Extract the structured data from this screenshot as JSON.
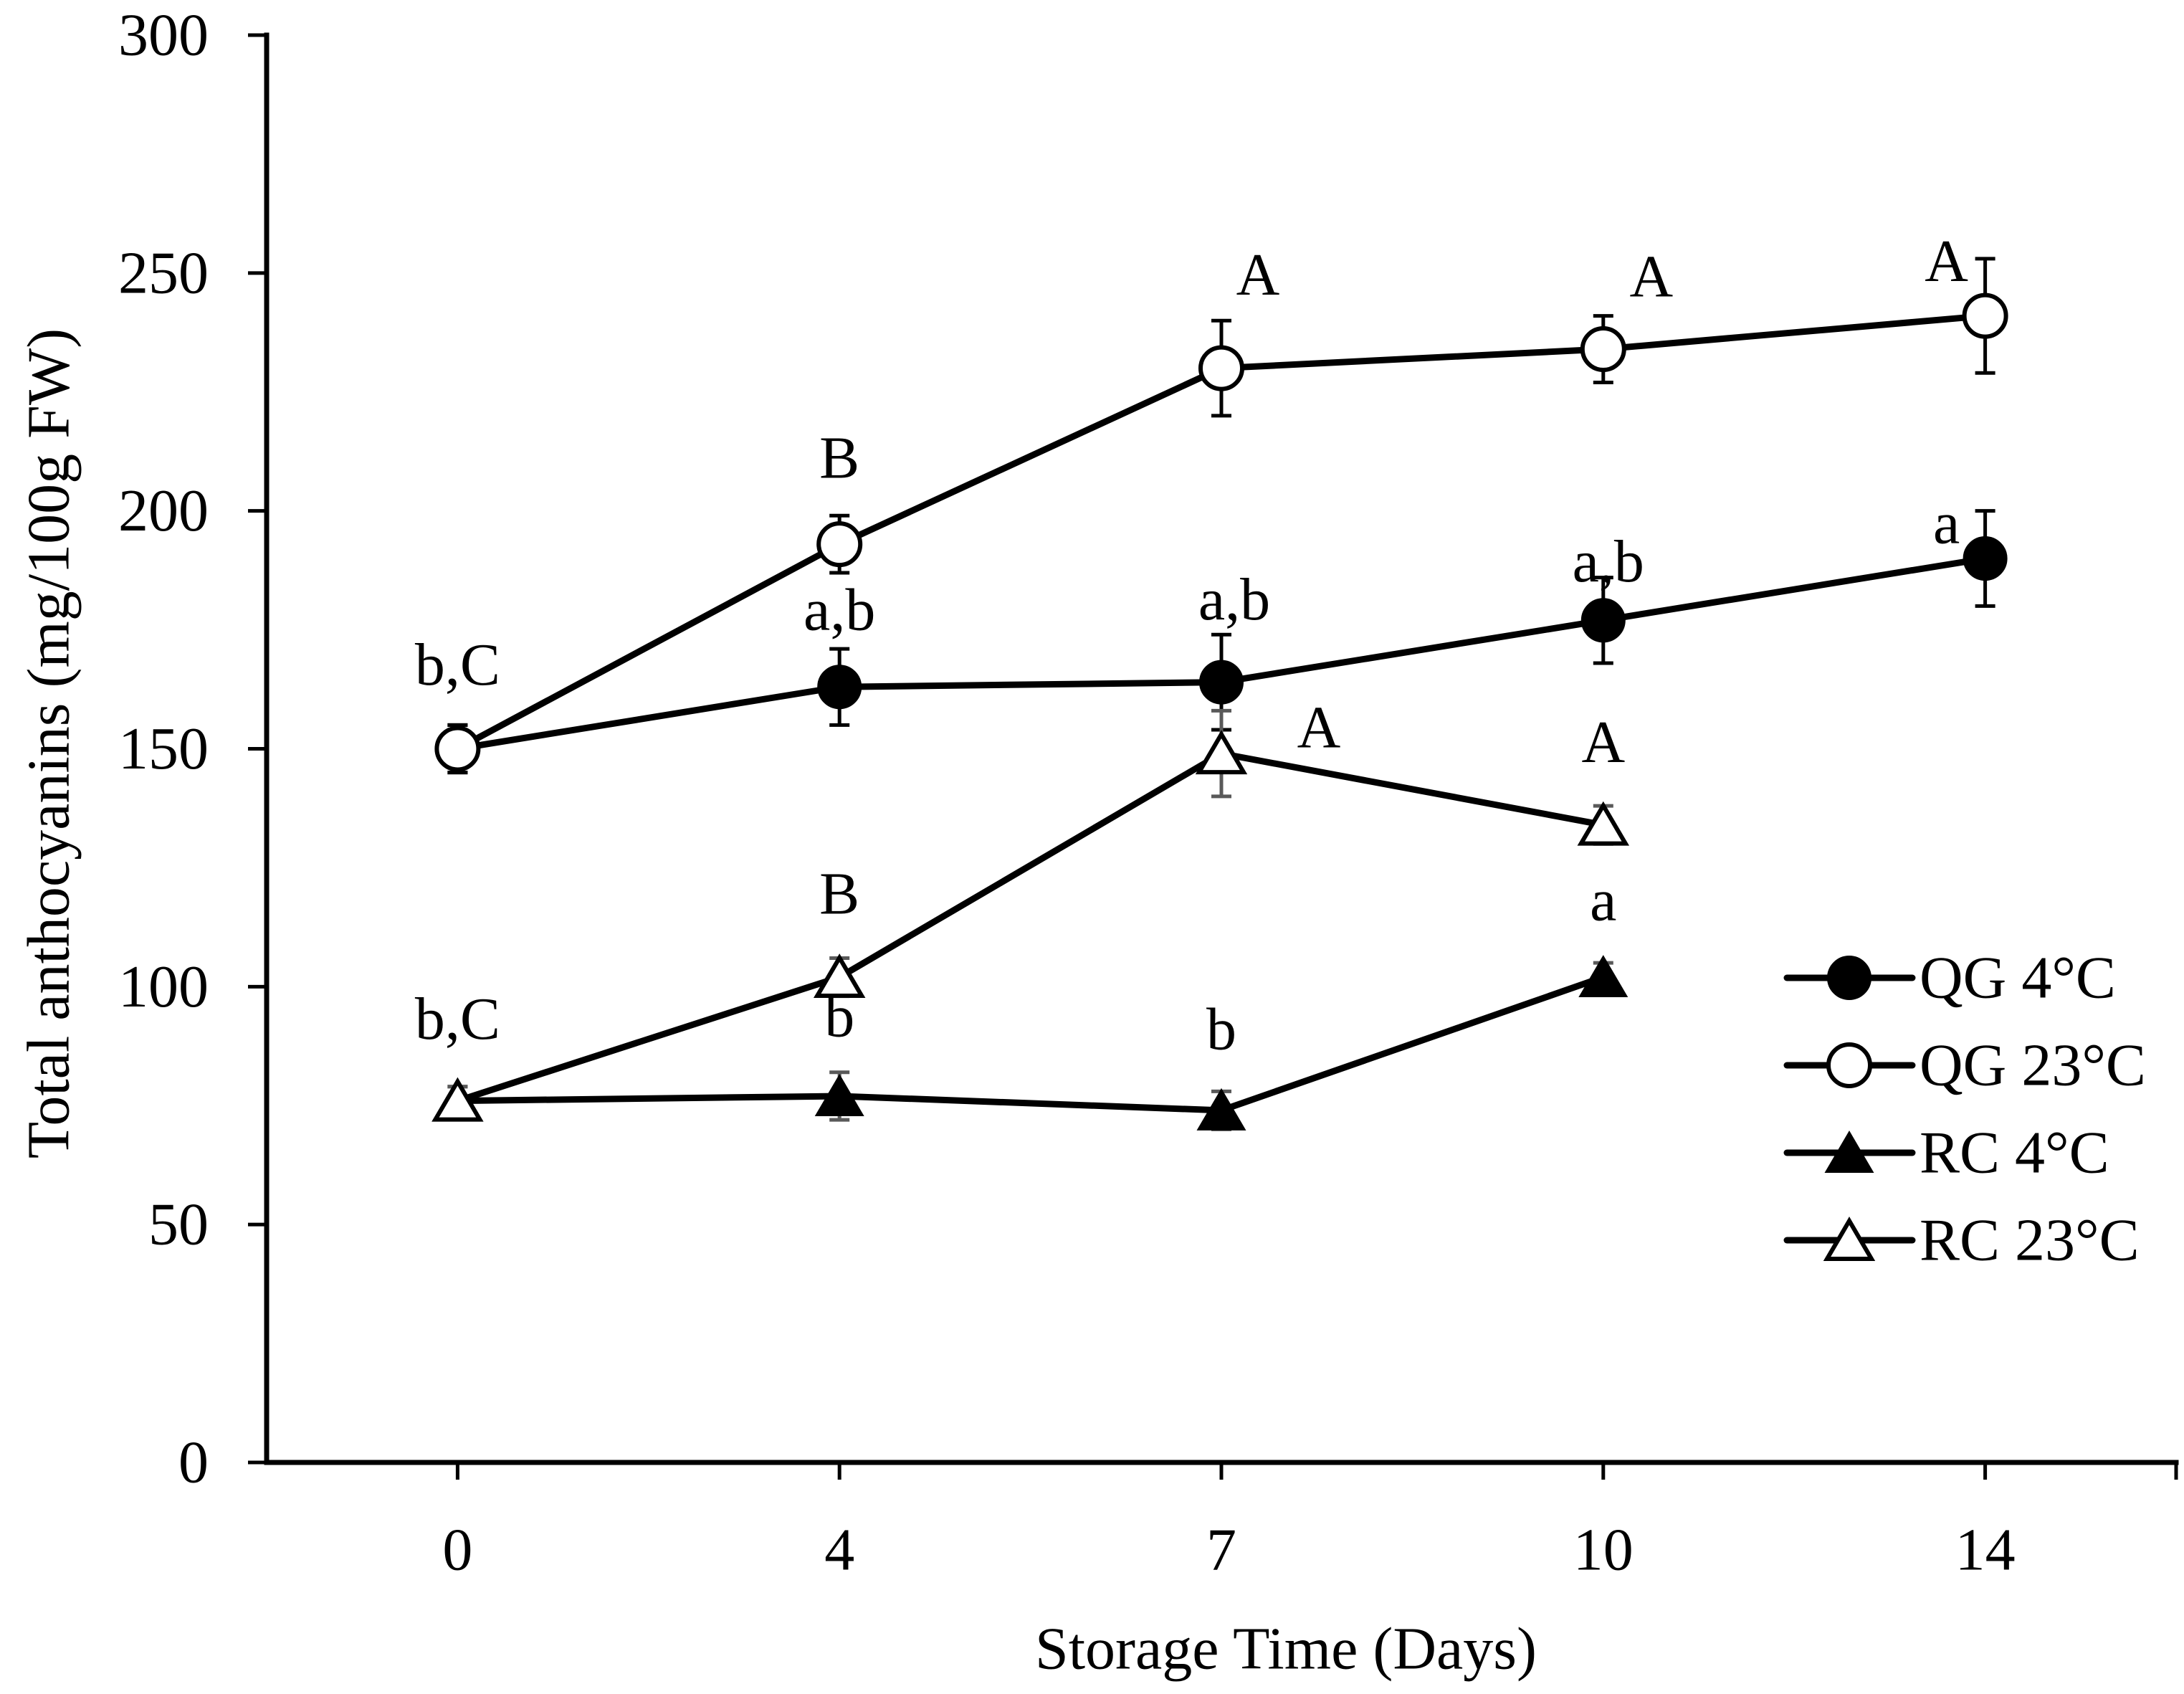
{
  "chart_data": {
    "type": "line",
    "xlabel": "Storage Time (Days)",
    "ylabel": "Total anthocyanins (mg/100g FW)",
    "categories": [
      "0",
      "4",
      "7",
      "10",
      "14"
    ],
    "ylim": [
      0,
      300
    ],
    "yticks": [
      0,
      50,
      100,
      150,
      200,
      250,
      300
    ],
    "grid": false,
    "series": [
      {
        "name": "QG 4°C",
        "marker": "filled-circle",
        "color": "#000000",
        "error_color": "#000000",
        "values": [
          150,
          163,
          164,
          177,
          190
        ],
        "errors": [
          5,
          8,
          10,
          9,
          10
        ],
        "labels": [
          null,
          "a,b",
          "a,b",
          "a,b",
          "a"
        ]
      },
      {
        "name": "QG 23°C",
        "marker": "open-circle",
        "color": "#000000",
        "error_color": "#000000",
        "values": [
          150,
          193,
          230,
          234,
          241
        ],
        "errors": [
          5,
          6,
          10,
          7,
          12
        ],
        "labels": [
          "b,C",
          "B",
          "A",
          "A",
          "A"
        ]
      },
      {
        "name": "RC 4°C",
        "marker": "filled-triangle",
        "color": "#000000",
        "error_color": "#595959",
        "values": [
          76,
          77,
          74,
          102,
          null
        ],
        "errors": [
          3,
          5,
          4,
          3,
          null
        ],
        "labels": [
          null,
          "b",
          "b",
          "a",
          null
        ]
      },
      {
        "name": "RC 23°C",
        "marker": "open-triangle",
        "color": "#000000",
        "error_color": "#595959",
        "values": [
          76,
          102,
          149,
          134,
          null
        ],
        "errors": [
          3,
          4,
          9,
          4,
          null
        ],
        "labels": [
          "b,C",
          "B",
          "A",
          "A",
          null
        ]
      }
    ]
  }
}
